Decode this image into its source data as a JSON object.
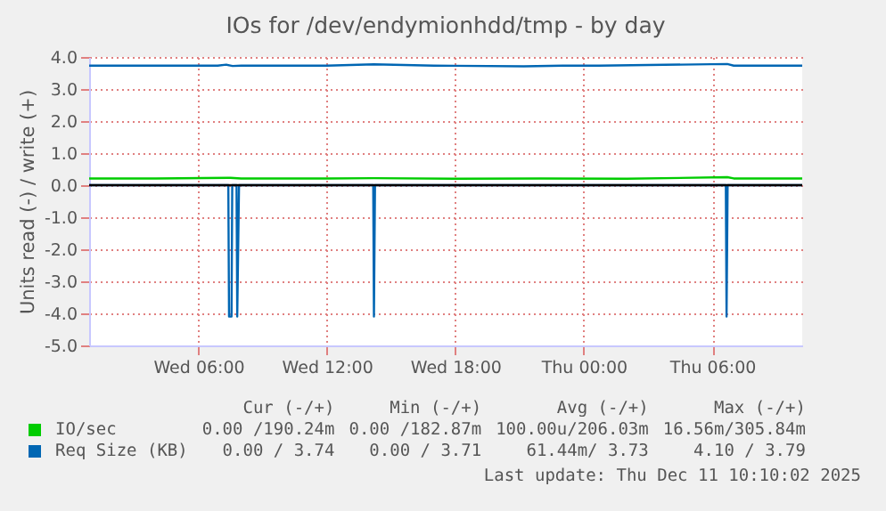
{
  "chart_data": {
    "type": "line",
    "title": "IOs for /dev/endymionhdd/tmp - by day",
    "ylabel": "Units read (-) / write (+)",
    "xlim": [
      "2025-12-10T00:54",
      "2025-12-11T10:12"
    ],
    "xticks": [
      {
        "value": "2025-12-10T06:00",
        "label": "Wed 06:00"
      },
      {
        "value": "2025-12-10T12:00",
        "label": "Wed 12:00"
      },
      {
        "value": "2025-12-10T18:00",
        "label": "Wed 18:00"
      },
      {
        "value": "2025-12-11T00:00",
        "label": "Thu 00:00"
      },
      {
        "value": "2025-12-11T06:00",
        "label": "Thu 06:00"
      }
    ],
    "ylim": [
      -5,
      4
    ],
    "yticks": [
      {
        "value": -5,
        "label": "-5.0"
      },
      {
        "value": -4,
        "label": "-4.0"
      },
      {
        "value": -3,
        "label": "-3.0"
      },
      {
        "value": -2,
        "label": "-2.0"
      },
      {
        "value": -1,
        "label": "-1.0"
      },
      {
        "value": 0,
        "label": "0.0"
      },
      {
        "value": 1,
        "label": "1.0"
      },
      {
        "value": 2,
        "label": "2.0"
      },
      {
        "value": 3,
        "label": "3.0"
      },
      {
        "value": 4,
        "label": "4.0"
      }
    ],
    "series": [
      {
        "name": "IO/sec",
        "color": "#00cc00",
        "x": [
          "2025-12-10T00:54",
          "2025-12-10T04:00",
          "2025-12-10T07:30",
          "2025-12-10T08:00",
          "2025-12-10T12:00",
          "2025-12-10T14:12",
          "2025-12-10T18:00",
          "2025-12-10T22:00",
          "2025-12-11T02:00",
          "2025-12-11T06:42",
          "2025-12-11T07:00",
          "2025-12-11T10:12"
        ],
        "values": [
          0.21,
          0.21,
          0.23,
          0.21,
          0.21,
          0.22,
          0.2,
          0.21,
          0.2,
          0.25,
          0.21,
          0.21
        ]
      },
      {
        "name": "Req Size (KB)",
        "color": "#0066b3",
        "x": [
          "2025-12-10T00:54",
          "2025-12-10T06:54",
          "2025-12-10T07:18",
          "2025-12-10T07:36",
          "2025-12-10T08:00",
          "2025-12-10T12:00",
          "2025-12-10T14:12",
          "2025-12-10T17:00",
          "2025-12-10T21:12",
          "2025-12-10T23:00",
          "2025-12-11T00:42",
          "2025-12-11T06:42",
          "2025-12-11T07:00",
          "2025-12-11T10:12"
        ],
        "values": [
          3.73,
          3.73,
          3.76,
          3.72,
          3.73,
          3.73,
          3.77,
          3.73,
          3.71,
          3.73,
          3.73,
          3.78,
          3.73,
          3.73
        ]
      },
      {
        "color": "#0066b3",
        "x": [
          "2025-12-10T00:54",
          "2025-12-10T07:24",
          "2025-12-10T07:26",
          "2025-12-10T07:33",
          "2025-12-10T07:35",
          "2025-12-10T07:47",
          "2025-12-10T07:49",
          "2025-12-10T07:54",
          "2025-12-10T14:10",
          "2025-12-10T14:12",
          "2025-12-10T14:15",
          "2025-12-11T06:38",
          "2025-12-11T06:40",
          "2025-12-11T06:43",
          "2025-12-11T10:12"
        ],
        "values": [
          0,
          0,
          -4.1,
          -4.1,
          0,
          0,
          -4.1,
          0,
          0,
          -4.1,
          0,
          0,
          -4.1,
          0,
          0
        ]
      }
    ],
    "ref_lines": [
      {
        "axis": "y",
        "value": 0,
        "color": "#000000"
      }
    ],
    "grid": true,
    "legend": "bottom",
    "annotations": [
      "Cur (-/+)",
      "Min (-/+)",
      "Avg (-/+)",
      "Max (-/+)",
      "0.00 /190.24m",
      "0.00 /182.87m",
      "100.00u/206.03m",
      "16.56m/305.84m",
      "0.00 / 3.74",
      "0.00 / 3.71",
      "61.44m/ 3.73",
      "4.10 / 3.79",
      "Last update: Thu Dec 11 10:10:02 2025"
    ]
  }
}
